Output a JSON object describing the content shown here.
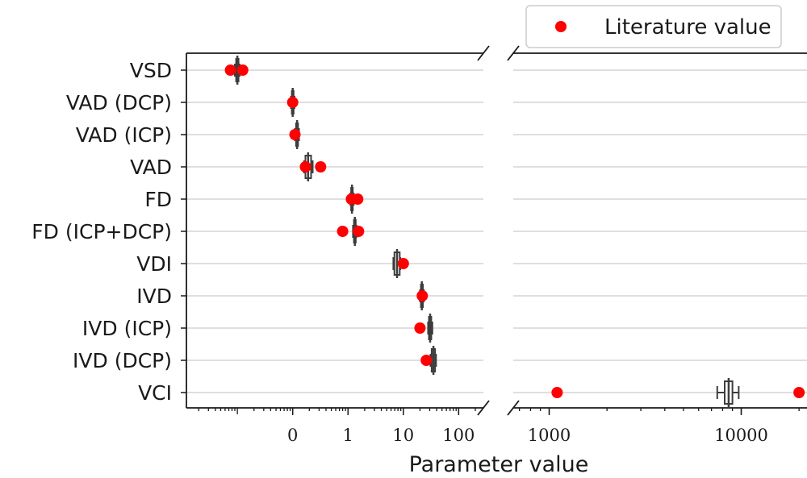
{
  "chart_data": {
    "type": "scatter",
    "subtype": "horizontal box plots with literature-value points, broken log x-axis",
    "xlabel": "Parameter value",
    "x_scale": "log",
    "x_axis_break": true,
    "categories": [
      "VSD",
      "VAD (DCP)",
      "VAD (ICP)",
      "VAD",
      "FD",
      "FD (ICP+DCP)",
      "VDI",
      "IVD",
      "IVD (ICP)",
      "IVD (DCP)",
      "VCI"
    ],
    "panels": [
      {
        "xlim": [
          0.0012,
          280
        ],
        "ticks": [
          {
            "value": 0.1,
            "label": "0"
          },
          {
            "value": 1,
            "label": "1"
          },
          {
            "value": 10,
            "label": "10"
          },
          {
            "value": 100,
            "label": "100"
          }
        ]
      },
      {
        "xlim": [
          650,
          22000
        ],
        "ticks": [
          {
            "value": 1000,
            "label": "1000"
          },
          {
            "value": 10000,
            "label": "10000"
          }
        ]
      }
    ],
    "boxes": [
      {
        "category": "VSD",
        "q1": 0.0095,
        "median": 0.01,
        "q3": 0.0105,
        "whisker_low": 0.009,
        "whisker_high": 0.011
      },
      {
        "category": "VAD (DCP)",
        "q1": 0.0965,
        "median": 0.1,
        "q3": 0.104,
        "whisker_low": 0.093,
        "whisker_high": 0.108
      },
      {
        "category": "VAD (ICP)",
        "q1": 0.115,
        "median": 0.12,
        "q3": 0.125,
        "whisker_low": 0.11,
        "whisker_high": 0.13
      },
      {
        "category": "VAD",
        "q1": 0.17,
        "median": 0.19,
        "q3": 0.215,
        "whisker_low": 0.16,
        "whisker_high": 0.23
      },
      {
        "category": "FD",
        "q1": 1.14,
        "median": 1.18,
        "q3": 1.22,
        "whisker_low": 1.1,
        "whisker_high": 1.27
      },
      {
        "category": "FD (ICP+DCP)",
        "q1": 1.28,
        "median": 1.33,
        "q3": 1.38,
        "whisker_low": 1.23,
        "whisker_high": 1.43
      },
      {
        "category": "VDI",
        "q1": 6.9,
        "median": 7.7,
        "q3": 8.6,
        "whisker_low": 6.6,
        "whisker_high": 8.8
      },
      {
        "category": "IVD",
        "q1": 20.8,
        "median": 21.6,
        "q3": 22.6,
        "whisker_low": 20,
        "whisker_high": 23.5
      },
      {
        "category": "IVD (ICP)",
        "q1": 29.0,
        "median": 30.5,
        "q3": 32.0,
        "whisker_low": 28,
        "whisker_high": 33.5
      },
      {
        "category": "IVD (DCP)",
        "q1": 32.5,
        "median": 35.0,
        "q3": 37.5,
        "whisker_low": 31,
        "whisker_high": 39
      },
      {
        "category": "VCI",
        "q1": 8200,
        "median": 8600,
        "q3": 9000,
        "whisker_low": 7500,
        "whisker_high": 9700
      }
    ],
    "literature_values": [
      {
        "category": "VSD",
        "values": [
          0.0075,
          0.0125
        ]
      },
      {
        "category": "VAD (DCP)",
        "values": [
          0.1
        ]
      },
      {
        "category": "VAD (ICP)",
        "values": [
          0.11
        ]
      },
      {
        "category": "VAD",
        "values": [
          0.17,
          0.32
        ]
      },
      {
        "category": "FD",
        "values": [
          1.15,
          1.5
        ]
      },
      {
        "category": "FD (ICP+DCP)",
        "values": [
          0.8,
          1.55
        ]
      },
      {
        "category": "VDI",
        "values": [
          10
        ]
      },
      {
        "category": "IVD",
        "values": [
          22
        ]
      },
      {
        "category": "IVD (ICP)",
        "values": [
          20
        ]
      },
      {
        "category": "IVD (DCP)",
        "values": [
          26
        ]
      },
      {
        "category": "VCI",
        "values": [
          1100,
          20000
        ]
      }
    ],
    "legend": {
      "label": "Literature value",
      "placement": "top-right"
    },
    "colors": {
      "literature": "#ff0000",
      "box": "#3d3d3d",
      "grid": "#cccccc",
      "axis": "#1a1a1a"
    },
    "grid": "horizontal"
  }
}
